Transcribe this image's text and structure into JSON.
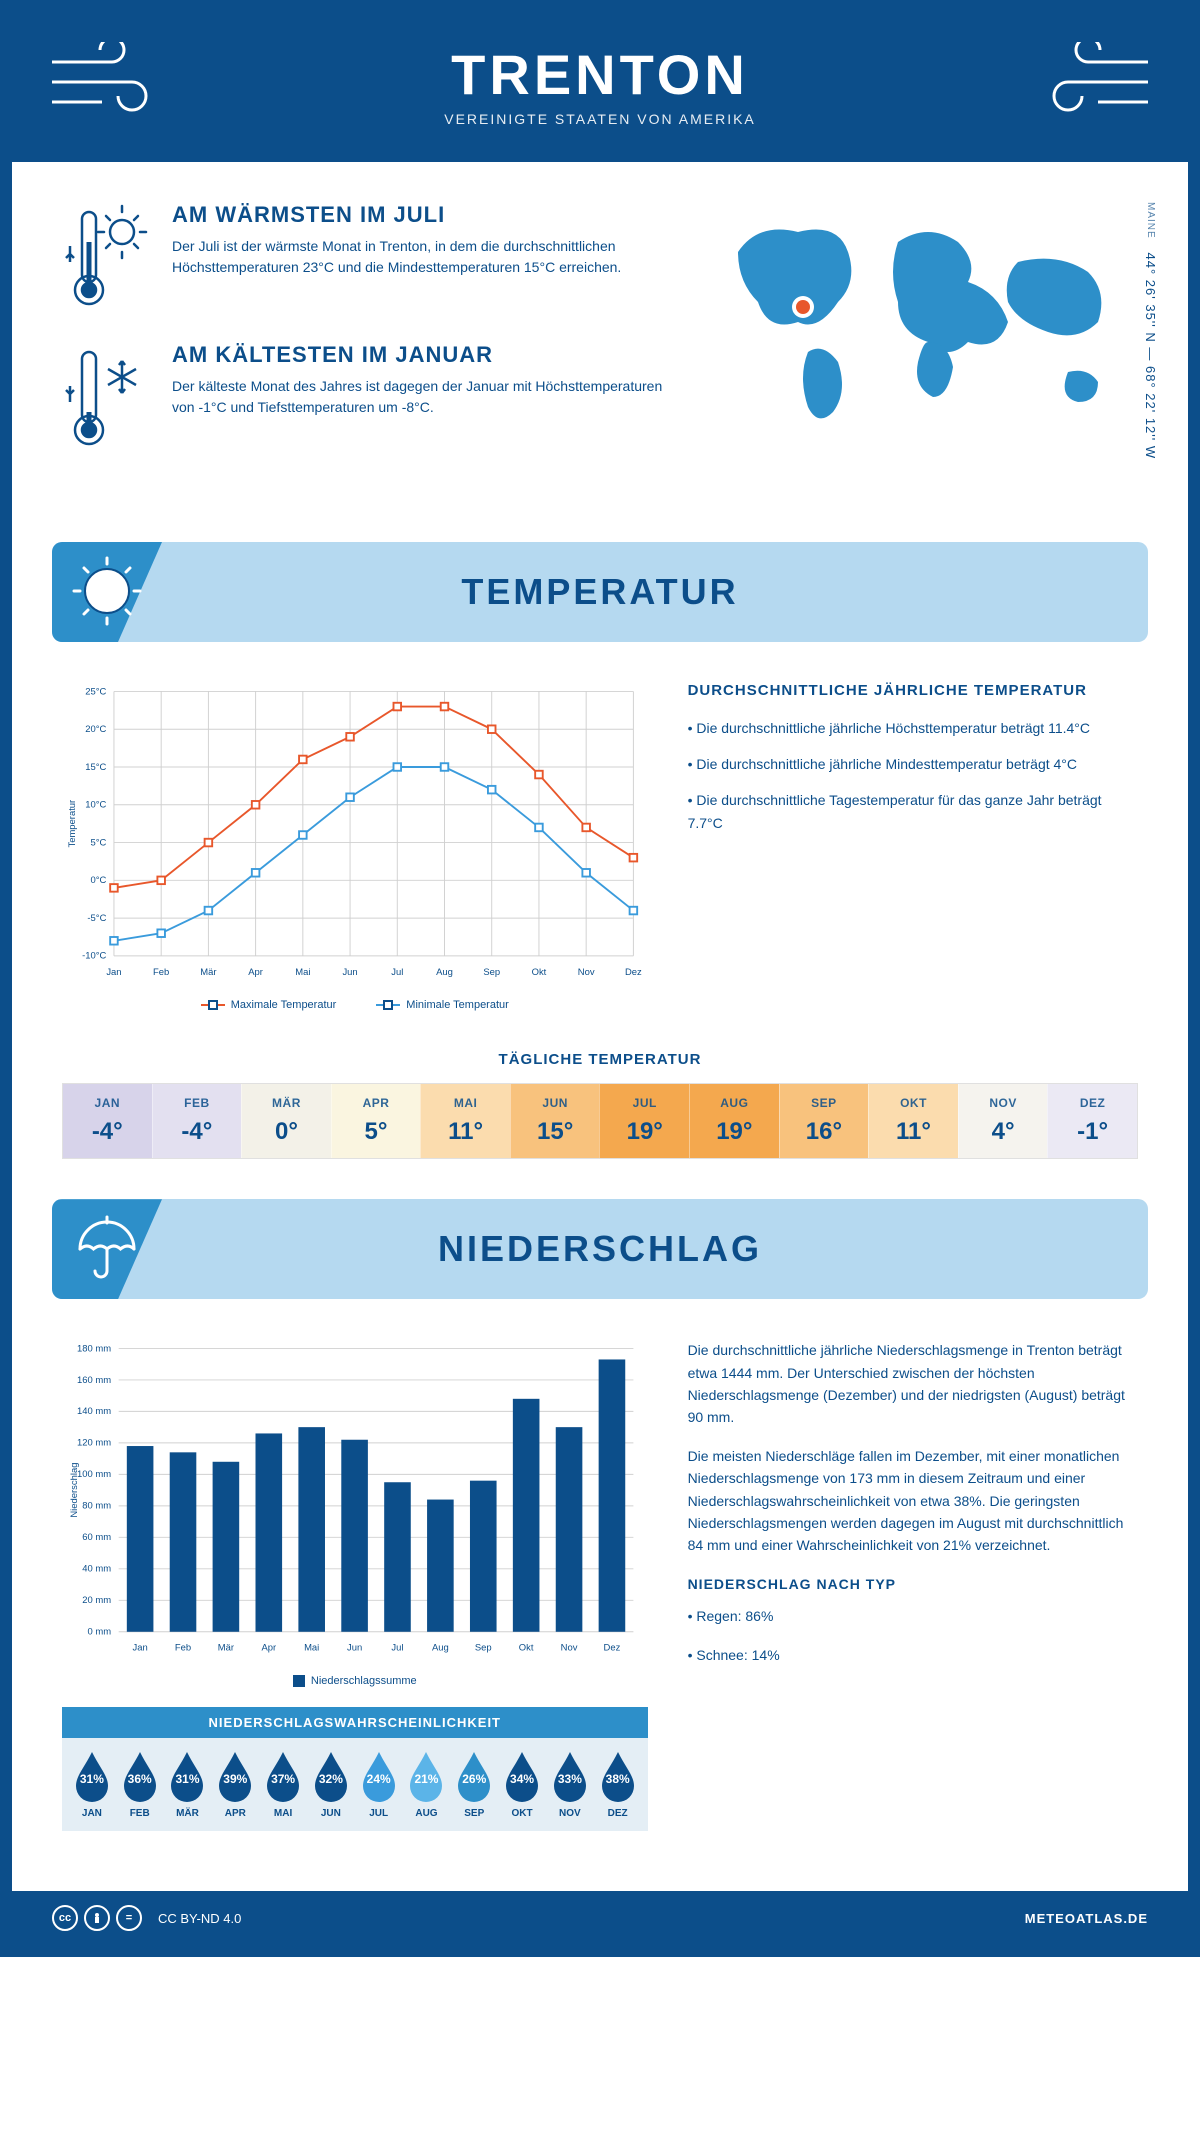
{
  "header": {
    "title": "TRENTON",
    "subtitle": "VEREINIGTE STAATEN VON AMERIKA"
  },
  "coords": {
    "lat": "44° 26' 35'' N",
    "lon": "68° 22' 12'' W",
    "region": "MAINE"
  },
  "intro": {
    "warmest": {
      "title": "AM WÄRMSTEN IM JULI",
      "text": "Der Juli ist der wärmste Monat in Trenton, in dem die durchschnittlichen Höchsttemperaturen 23°C und die Mindesttemperaturen 15°C erreichen."
    },
    "coldest": {
      "title": "AM KÄLTESTEN IM JANUAR",
      "text": "Der kälteste Monat des Jahres ist dagegen der Januar mit Höchsttemperaturen von -1°C und Tiefsttemperaturen um -8°C."
    }
  },
  "temperature": {
    "section_title": "TEMPERATUR",
    "chart": {
      "type": "line",
      "months": [
        "Jan",
        "Feb",
        "Mär",
        "Apr",
        "Mai",
        "Jun",
        "Jul",
        "Aug",
        "Sep",
        "Okt",
        "Nov",
        "Dez"
      ],
      "max_series": {
        "label": "Maximale Temperatur",
        "color": "#e8572b",
        "values": [
          -1,
          0,
          5,
          10,
          16,
          19,
          23,
          23,
          20,
          14,
          7,
          3
        ]
      },
      "min_series": {
        "label": "Minimale Temperatur",
        "color": "#3a9bdc",
        "values": [
          -8,
          -7,
          -4,
          1,
          6,
          11,
          15,
          15,
          12,
          7,
          1,
          -4
        ]
      },
      "ylim": [
        -10,
        25
      ],
      "ytick_step": 5,
      "y_label": "Temperatur",
      "grid_color": "#d0d0d0",
      "line_width": 2,
      "marker_size": 4
    },
    "info": {
      "heading": "DURCHSCHNITTLICHE JÄHRLICHE TEMPERATUR",
      "bullets": [
        "• Die durchschnittliche jährliche Höchsttemperatur beträgt 11.4°C",
        "• Die durchschnittliche jährliche Mindesttemperatur beträgt 4°C",
        "• Die durchschnittliche Tagestemperatur für das ganze Jahr beträgt 7.7°C"
      ]
    },
    "daily": {
      "heading": "TÄGLICHE TEMPERATUR",
      "months": [
        "JAN",
        "FEB",
        "MÄR",
        "APR",
        "MAI",
        "JUN",
        "JUL",
        "AUG",
        "SEP",
        "OKT",
        "NOV",
        "DEZ"
      ],
      "values": [
        "-4°",
        "-4°",
        "0°",
        "5°",
        "11°",
        "15°",
        "19°",
        "19°",
        "16°",
        "11°",
        "4°",
        "-1°"
      ],
      "colors": [
        "#d7d3ea",
        "#e3e0f0",
        "#f3f1e8",
        "#faf5e0",
        "#fbdcae",
        "#f8c27d",
        "#f4a84e",
        "#f4a84e",
        "#f8c27d",
        "#fbdcae",
        "#f5f3ee",
        "#ebe9f4"
      ]
    }
  },
  "precipitation": {
    "section_title": "NIEDERSCHLAG",
    "chart": {
      "type": "bar",
      "months": [
        "Jan",
        "Feb",
        "Mär",
        "Apr",
        "Mai",
        "Jun",
        "Jul",
        "Aug",
        "Sep",
        "Okt",
        "Nov",
        "Dez"
      ],
      "values": [
        118,
        114,
        108,
        126,
        130,
        122,
        95,
        84,
        96,
        148,
        130,
        173
      ],
      "ylim": [
        0,
        180
      ],
      "ytick_step": 20,
      "y_label": "Niederschlag",
      "bar_color": "#0c4e8a",
      "grid_color": "#d0d0d0",
      "legend_label": "Niederschlagssumme"
    },
    "text1": "Die durchschnittliche jährliche Niederschlagsmenge in Trenton beträgt etwa 1444 mm. Der Unterschied zwischen der höchsten Niederschlagsmenge (Dezember) und der niedrigsten (August) beträgt 90 mm.",
    "text2": "Die meisten Niederschläge fallen im Dezember, mit einer monatlichen Niederschlagsmenge von 173 mm in diesem Zeitraum und einer Niederschlagswahrscheinlichkeit von etwa 38%. Die geringsten Niederschlagsmengen werden dagegen im August mit durchschnittlich 84 mm und einer Wahrscheinlichkeit von 21% verzeichnet.",
    "by_type": {
      "heading": "NIEDERSCHLAG NACH TYP",
      "rain": "• Regen: 86%",
      "snow": "• Schnee: 14%"
    },
    "probability": {
      "heading": "NIEDERSCHLAGSWAHRSCHEINLICHKEIT",
      "months": [
        "JAN",
        "FEB",
        "MÄR",
        "APR",
        "MAI",
        "JUN",
        "JUL",
        "AUG",
        "SEP",
        "OKT",
        "NOV",
        "DEZ"
      ],
      "values": [
        "31%",
        "36%",
        "31%",
        "39%",
        "37%",
        "32%",
        "24%",
        "21%",
        "26%",
        "34%",
        "33%",
        "38%"
      ],
      "colors": [
        "#0c4e8a",
        "#0c4e8a",
        "#0c4e8a",
        "#0c4e8a",
        "#0c4e8a",
        "#0c4e8a",
        "#3a9bdc",
        "#5bb4e8",
        "#2d8fc9",
        "#0c4e8a",
        "#0c4e8a",
        "#0c4e8a"
      ]
    }
  },
  "footer": {
    "license": "CC BY-ND 4.0",
    "site": "METEOATLAS.DE"
  }
}
